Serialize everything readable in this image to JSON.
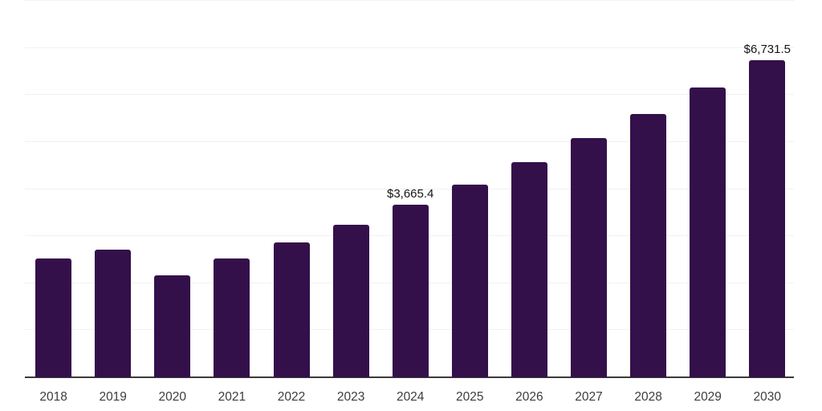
{
  "chart_data": {
    "type": "bar",
    "title": "",
    "xlabel": "",
    "ylabel": "",
    "categories": [
      "2018",
      "2019",
      "2020",
      "2021",
      "2022",
      "2023",
      "2024",
      "2025",
      "2026",
      "2027",
      "2028",
      "2029",
      "2030"
    ],
    "values": [
      2520,
      2720,
      2175,
      2525,
      2865,
      3240,
      3665.4,
      4100,
      4580,
      5090,
      5600,
      6150,
      6731.5
    ],
    "data_labels": [
      {
        "category": "2024",
        "text": "$3,665.4"
      },
      {
        "category": "2030",
        "text": "$6,731.5"
      }
    ],
    "ylim": [
      0,
      8000
    ],
    "gridline_step": 1000,
    "grid": "horizontal-only",
    "legend": "none",
    "y_tick_labels_visible": false,
    "colors": {
      "bar": "#34104B",
      "axis_line": "#3A3A3A",
      "gridline": "#F1F1F4",
      "x_label": "#3D3D3D",
      "value_label": "#141414",
      "background": "#FFFFFF"
    }
  }
}
